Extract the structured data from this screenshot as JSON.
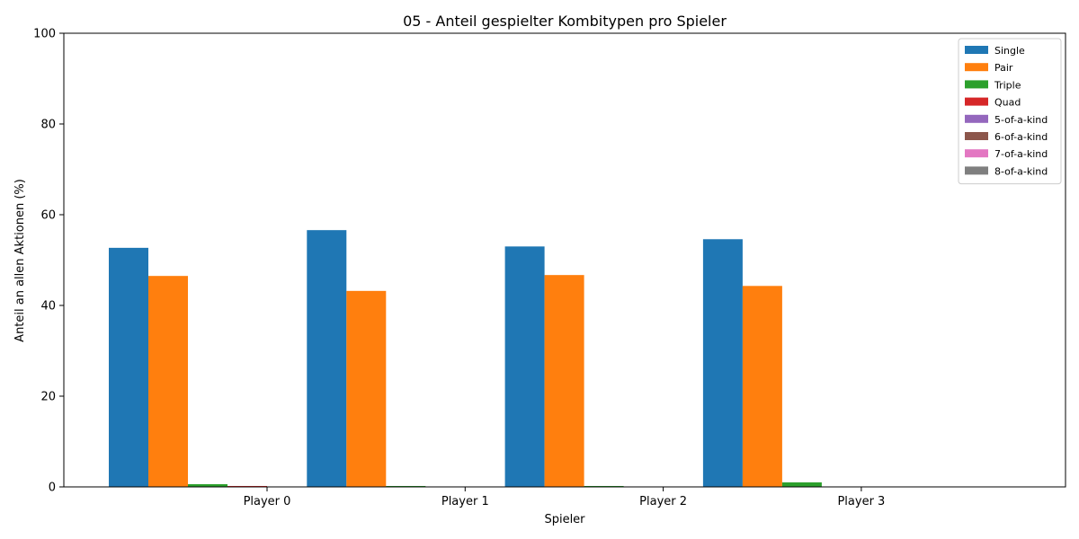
{
  "chart_data": {
    "type": "bar",
    "title": "05 - Anteil gespielter Kombitypen pro Spieler",
    "xlabel": "Spieler",
    "ylabel": "Anteil an allen Aktionen (%)",
    "ylim": [
      0,
      100
    ],
    "yticks": [
      0,
      20,
      40,
      60,
      80,
      100
    ],
    "grid": false,
    "legend_position": "top-right",
    "categories": [
      "Player 0",
      "Player 1",
      "Player 2",
      "Player 3"
    ],
    "series": [
      {
        "name": "Single",
        "color": "#1f77b4",
        "values": [
          52.7,
          56.6,
          53.0,
          54.6
        ]
      },
      {
        "name": "Pair",
        "color": "#ff7f0e",
        "values": [
          46.5,
          43.2,
          46.7,
          44.3
        ]
      },
      {
        "name": "Triple",
        "color": "#2ca02c",
        "values": [
          0.6,
          0.2,
          0.2,
          1.0
        ]
      },
      {
        "name": "Quad",
        "color": "#d62728",
        "values": [
          0.2,
          0.0,
          0.0,
          0.0
        ]
      },
      {
        "name": "5-of-a-kind",
        "color": "#9467bd",
        "values": [
          0.0,
          0.0,
          0.0,
          0.0
        ]
      },
      {
        "name": "6-of-a-kind",
        "color": "#8c564b",
        "values": [
          0.0,
          0.0,
          0.0,
          0.0
        ]
      },
      {
        "name": "7-of-a-kind",
        "color": "#e377c2",
        "values": [
          0.0,
          0.0,
          0.0,
          0.0
        ]
      },
      {
        "name": "8-of-a-kind",
        "color": "#7f7f7f",
        "values": [
          0.0,
          0.0,
          0.0,
          0.0
        ]
      }
    ]
  }
}
